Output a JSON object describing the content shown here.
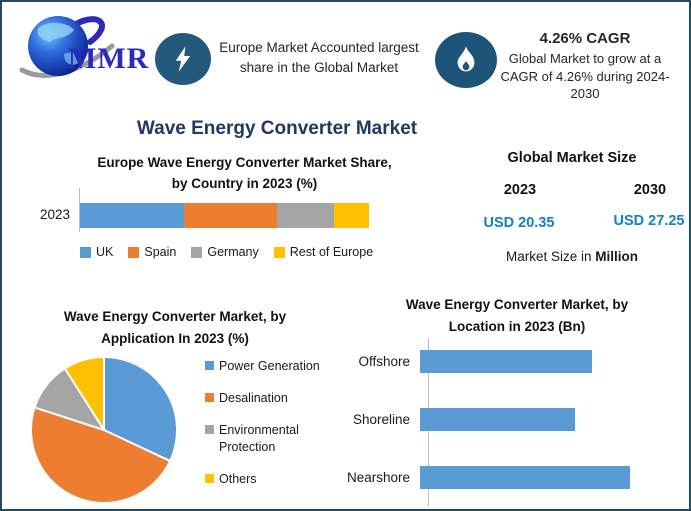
{
  "brand": {
    "logo_text": "MMR"
  },
  "colors": {
    "border": "#214a60",
    "title_navy": "#1f3864",
    "icon_circle": "#23597c",
    "usd_blue": "#1080c8",
    "series_blue": "#5b9bd5",
    "series_orange": "#ed7d31",
    "series_gray": "#a5a5a5",
    "series_yellow": "#ffc000",
    "axis_gray": "#bfbfbf"
  },
  "header": {
    "europe_note": "Europe Market Accounted largest share in the Global Market",
    "cagr_title": "4.26% CAGR",
    "cagr_note": "Global Market to grow at a CAGR of 4.26% during 2024-2030"
  },
  "main_title": "Wave Energy Converter Market",
  "market_size": {
    "title": "Global Market Size",
    "year_left": "2023",
    "year_right": "2030",
    "value_left": "USD 20.35",
    "value_right": "USD 27.25",
    "note_prefix": "Market Size in ",
    "note_bold": "Million"
  },
  "chart_data": [
    {
      "id": "europe_country_share",
      "type": "bar",
      "subtype": "stacked-horizontal",
      "title": "Europe Wave Energy Converter Market Share, by Country in 2023 (%)",
      "title_lines": [
        "Europe Wave Energy Converter Market Share,",
        "by Country in 2023 (%)"
      ],
      "categories": [
        "2023"
      ],
      "series": [
        {
          "name": "UK",
          "values": [
            36
          ],
          "color": "#5b9bd5"
        },
        {
          "name": "Spain",
          "values": [
            32
          ],
          "color": "#ed7d31"
        },
        {
          "name": "Germany",
          "values": [
            20
          ],
          "color": "#a5a5a5"
        },
        {
          "name": "Rest of Europe",
          "values": [
            12
          ],
          "color": "#ffc000"
        }
      ],
      "xlim": [
        0,
        100
      ],
      "legend_position": "bottom",
      "values_estimated_from_pixels": true
    },
    {
      "id": "application_share",
      "type": "pie",
      "title": "Wave Energy Converter Market, by Application In 2023 (%)",
      "title_lines": [
        "Wave Energy Converter Market, by",
        "Application In 2023 (%)"
      ],
      "labels": [
        "Power Generation",
        "Desalination",
        "Environmental Protection",
        "Others"
      ],
      "values": [
        32,
        48,
        11,
        9
      ],
      "colors": [
        "#5b9bd5",
        "#ed7d31",
        "#a5a5a5",
        "#ffc000"
      ],
      "start_angle_deg": 0,
      "direction": "clockwise",
      "legend_position": "right",
      "values_estimated_from_pixels": true
    },
    {
      "id": "location_size",
      "type": "bar",
      "subtype": "horizontal",
      "title": "Wave Energy Converter Market, by Location in 2023 (Bn)",
      "title_lines": [
        "Wave Energy Converter Market, by",
        "Location in 2023 (Bn)"
      ],
      "categories": [
        "Offshore",
        "Shoreline",
        "Nearshore"
      ],
      "values": [
        0.82,
        0.74,
        1.0
      ],
      "color": "#5b9bd5",
      "axis_value_labels": "none",
      "values_estimated_from_pixels": true
    }
  ]
}
